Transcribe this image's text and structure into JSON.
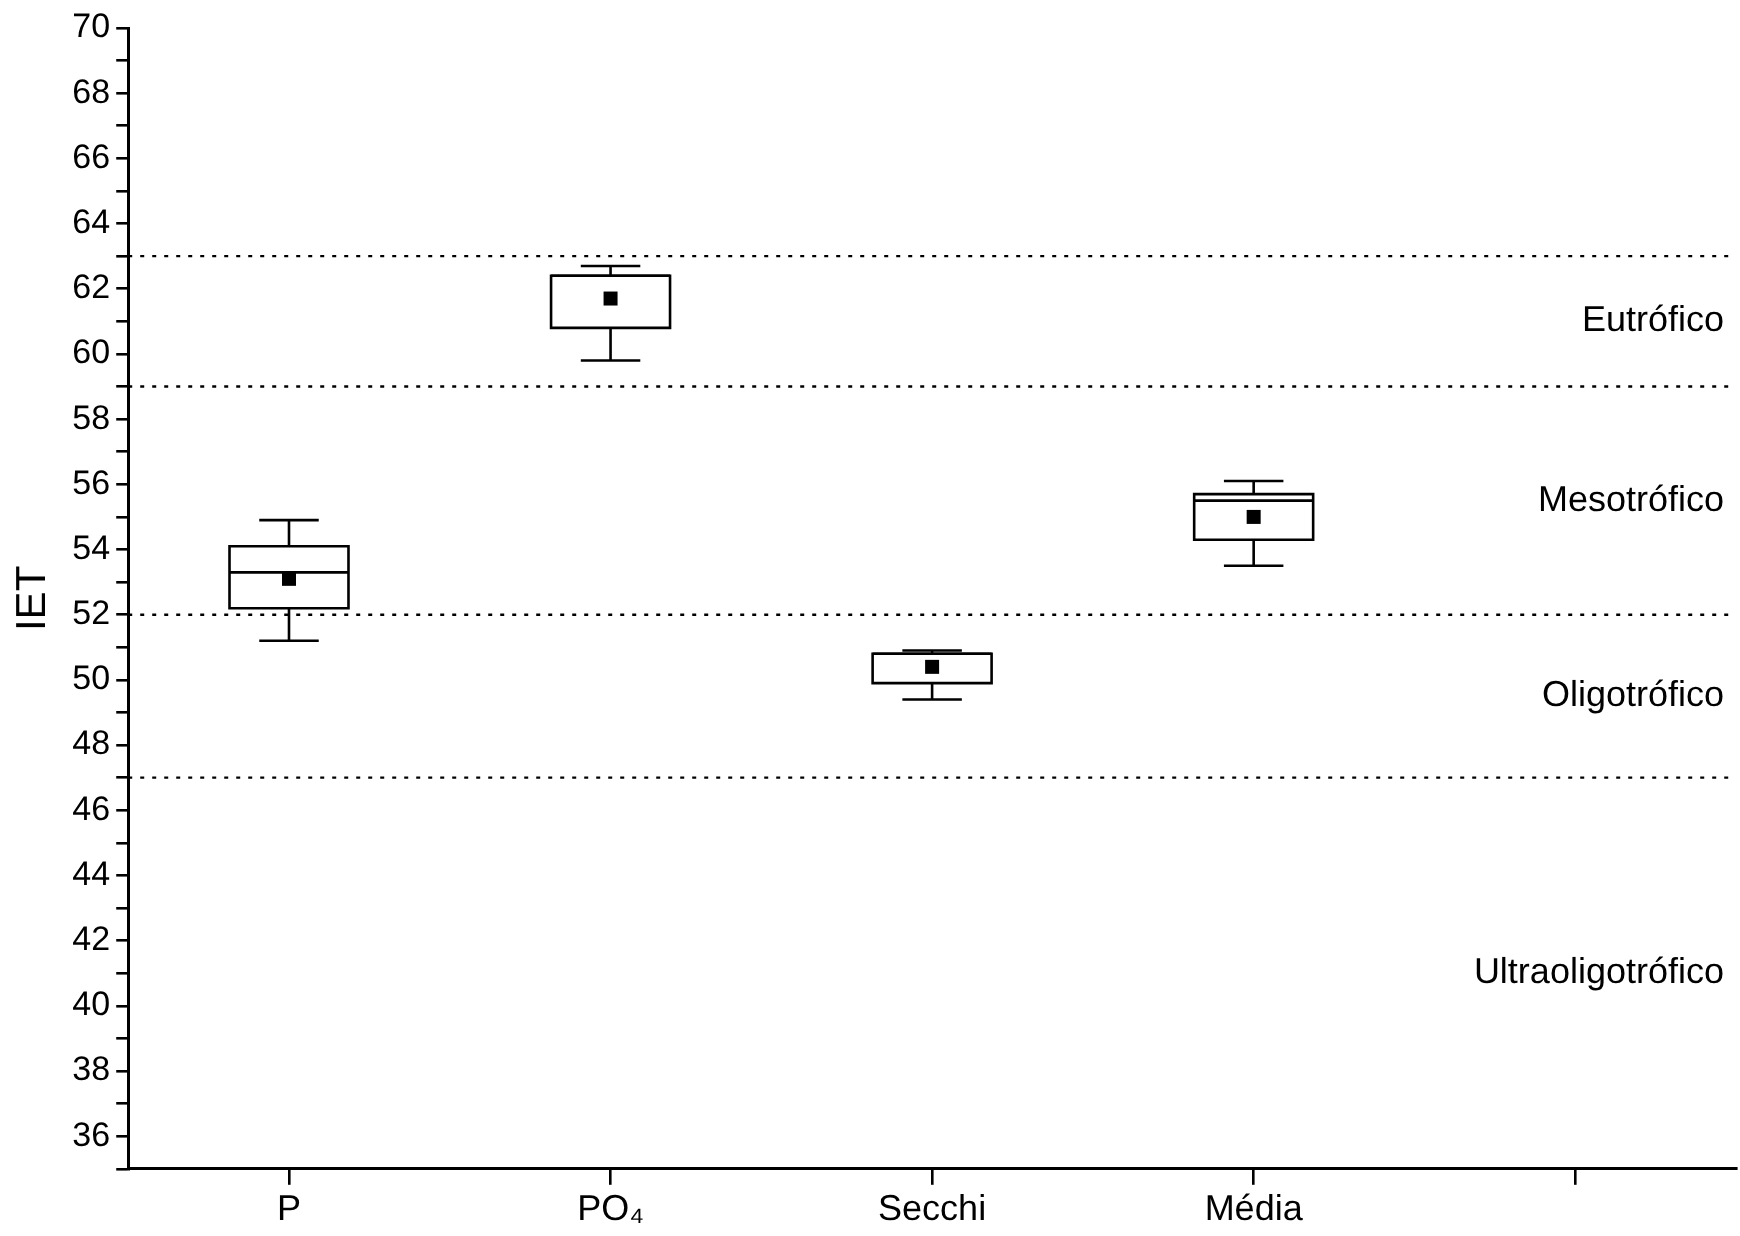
{
  "chart_data": {
    "type": "box",
    "ylabel": "IET",
    "categories": [
      "P",
      "PO₄",
      "Secchi",
      "Média",
      null
    ],
    "boxes": [
      {
        "low": 51.2,
        "q1": 52.2,
        "median": 53.3,
        "q3": 54.1,
        "high": 54.9,
        "mean": 53.1
      },
      {
        "low": 59.8,
        "q1": 60.8,
        "median": 62.4,
        "q3": 62.4,
        "high": 62.7,
        "mean": 61.7
      },
      {
        "low": 49.4,
        "q1": 49.9,
        "median": 50.8,
        "q3": 50.8,
        "high": 50.9,
        "mean": 50.4
      },
      {
        "low": 53.5,
        "q1": 54.3,
        "median": 55.5,
        "q3": 55.7,
        "high": 56.1,
        "mean": 55.0
      },
      null
    ],
    "color": "#000000",
    "ylim": [
      35,
      70
    ],
    "yticks": [
      {
        "value": 35,
        "label": null
      },
      36,
      {
        "value": 37,
        "label": null
      },
      38,
      {
        "value": 39,
        "label": null
      },
      40,
      {
        "value": 41,
        "label": null
      },
      42,
      {
        "value": 43,
        "label": null
      },
      44,
      {
        "value": 45,
        "label": null
      },
      46,
      {
        "value": 47,
        "label": null
      },
      48,
      {
        "value": 49,
        "label": null
      },
      50,
      {
        "value": 51,
        "label": null
      },
      52,
      {
        "value": 53,
        "label": null
      },
      54,
      {
        "value": 55,
        "label": null
      },
      56,
      {
        "value": 57,
        "label": null
      },
      58,
      {
        "value": 59,
        "label": null
      },
      60,
      {
        "value": 61,
        "label": null
      },
      62,
      {
        "value": 63,
        "label": null
      },
      64,
      {
        "value": 65,
        "label": null
      },
      66,
      {
        "value": 67,
        "label": null
      },
      68,
      {
        "value": 69,
        "label": null
      },
      70
    ],
    "ref_lines": [
      {
        "axis": "y",
        "value": 63,
        "line_style": "dotted"
      },
      {
        "axis": "y",
        "value": 59,
        "line_style": "dotted"
      },
      {
        "axis": "y",
        "value": 52,
        "line_style": "dotted"
      },
      {
        "axis": "y",
        "value": 47,
        "line_style": "dotted"
      }
    ],
    "annotations": [
      "Eutrófico",
      "Mesotrófico",
      "Oligotrófico",
      "Ultraoligotrófico"
    ],
    "grid": false,
    "legend": false,
    "marker": "square"
  }
}
